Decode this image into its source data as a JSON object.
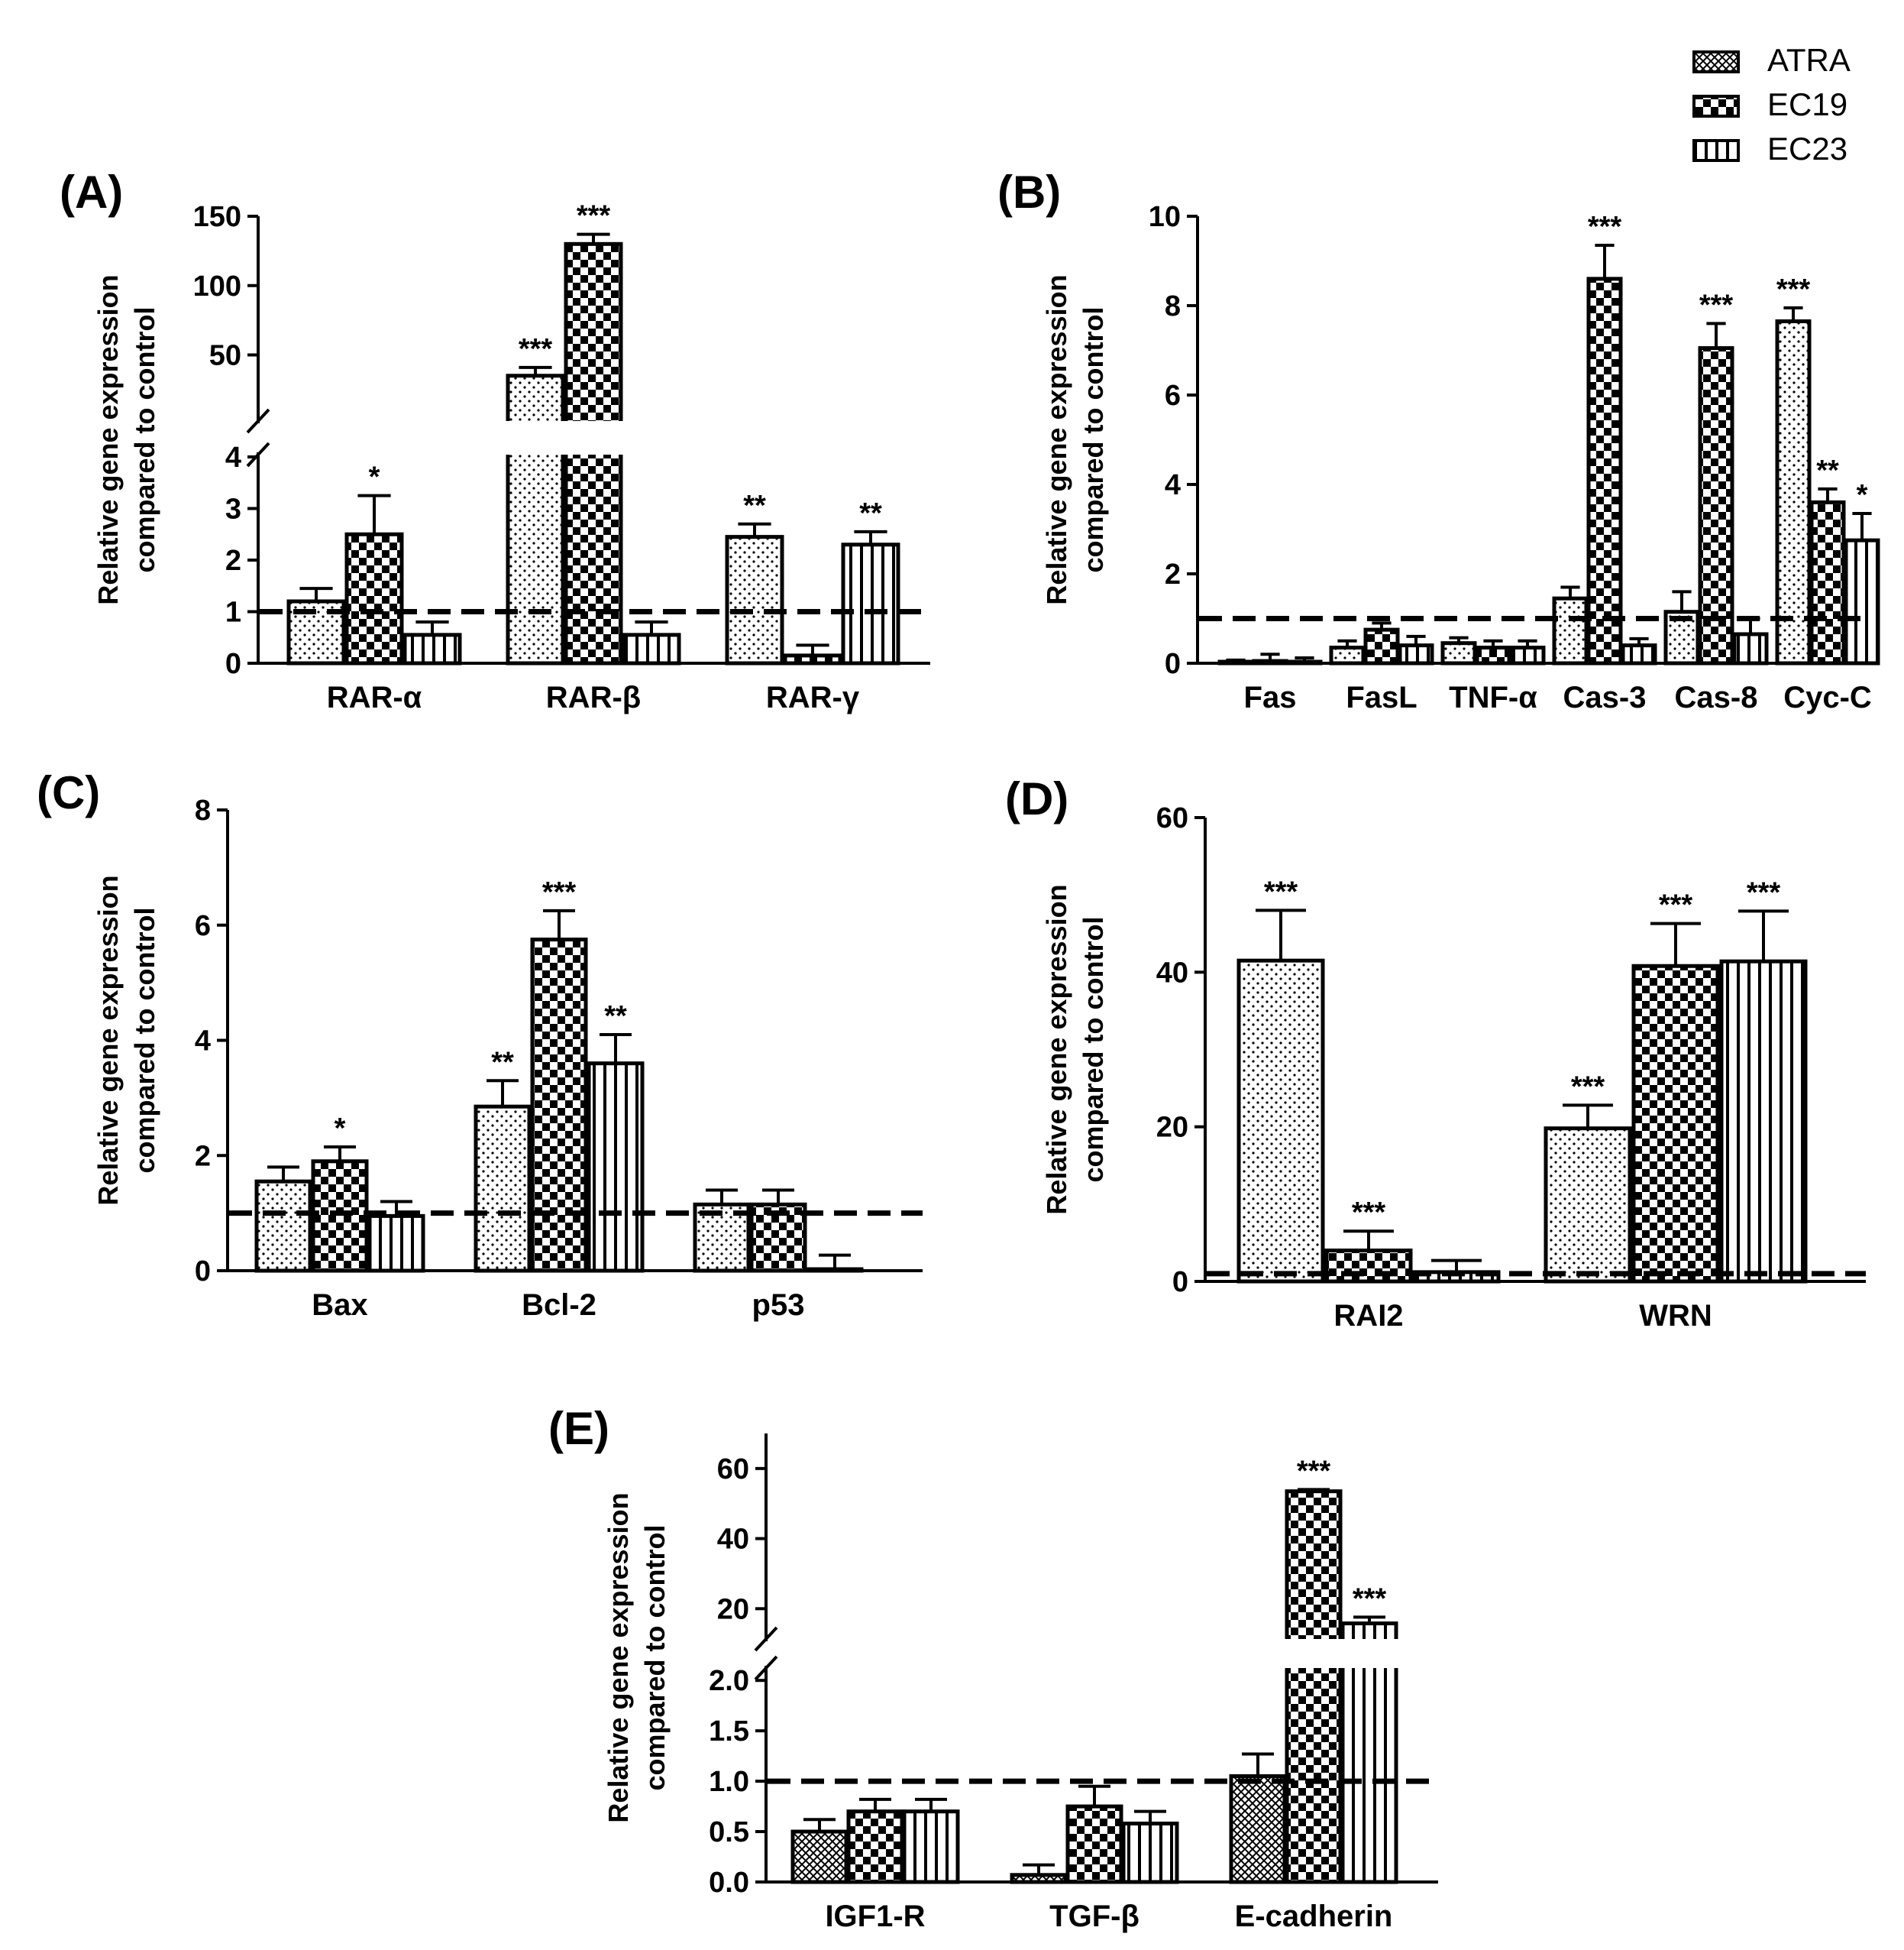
{
  "legend": {
    "entries": [
      {
        "name": "ATRA",
        "pattern": "dots"
      },
      {
        "name": "EC19",
        "pattern": "checker"
      },
      {
        "name": "EC23",
        "pattern": "vlines"
      }
    ]
  },
  "colors": {
    "ink": "#000000",
    "background": "#ffffff"
  },
  "chart_data": [
    {
      "panel": "(A)",
      "type": "bar",
      "ylabel": [
        "Relative gene expression",
        "compared to control"
      ],
      "categories": [
        "RAR-α",
        "RAR-β",
        "RAR-γ"
      ],
      "series": [
        {
          "name": "ATRA",
          "values": [
            1.2,
            35,
            2.45
          ],
          "errors": [
            0.25,
            6,
            0.25
          ],
          "stars": [
            "",
            "***",
            "**"
          ]
        },
        {
          "name": "EC19",
          "values": [
            2.5,
            130,
            0.15
          ],
          "errors": [
            0.75,
            7,
            0.2
          ],
          "stars": [
            "*",
            "***",
            ""
          ]
        },
        {
          "name": "EC23",
          "values": [
            0.55,
            0.55,
            2.3
          ],
          "errors": [
            0.25,
            0.25,
            0.25
          ],
          "stars": [
            "",
            "",
            "**"
          ]
        }
      ],
      "axis_break": {
        "lower": [
          0,
          4
        ],
        "upper": [
          4,
          150
        ]
      },
      "yticks_lower": [
        0,
        1,
        2,
        3,
        4
      ],
      "yticks_lower_labels": [
        "0",
        "1",
        "2",
        "3",
        "4"
      ],
      "yticks_upper": [
        50,
        100,
        150
      ],
      "yticks_upper_labels": [
        "50",
        "100",
        "150"
      ],
      "control_line": 1
    },
    {
      "panel": "(B)",
      "type": "bar",
      "ylabel": [
        "Relative gene expression",
        "compared to control"
      ],
      "categories": [
        "Fas",
        "FasL",
        "TNF-α",
        "Cas-3",
        "Cas-8",
        "Cyc-C"
      ],
      "series": [
        {
          "name": "ATRA",
          "values": [
            0.02,
            0.35,
            0.45,
            1.45,
            1.15,
            7.65
          ],
          "errors": [
            0.05,
            0.15,
            0.12,
            0.25,
            0.45,
            0.3
          ],
          "stars": [
            "",
            "",
            "",
            "",
            "",
            "***"
          ]
        },
        {
          "name": "EC19",
          "values": [
            0.05,
            0.75,
            0.35,
            8.6,
            7.05,
            3.6
          ],
          "errors": [
            0.15,
            0.15,
            0.15,
            0.75,
            0.55,
            0.3
          ],
          "stars": [
            "",
            "",
            "",
            "***",
            "***",
            "**"
          ]
        },
        {
          "name": "EC23",
          "values": [
            0.02,
            0.4,
            0.35,
            0.4,
            0.65,
            2.75
          ],
          "errors": [
            0.1,
            0.2,
            0.15,
            0.15,
            0.35,
            0.6
          ],
          "stars": [
            "",
            "",
            "",
            "",
            "",
            "*"
          ]
        }
      ],
      "ylim": [
        0,
        10
      ],
      "yticks": [
        0,
        2,
        4,
        6,
        8,
        10
      ],
      "ytick_labels": [
        "0",
        "2",
        "4",
        "6",
        "8",
        "10"
      ],
      "control_line": 1
    },
    {
      "panel": "(C)",
      "type": "bar",
      "ylabel": [
        "Relative gene expression",
        "compared to control"
      ],
      "categories": [
        "Bax",
        "Bcl-2",
        "p53"
      ],
      "series": [
        {
          "name": "ATRA",
          "values": [
            1.55,
            2.85,
            1.15
          ],
          "errors": [
            0.25,
            0.45,
            0.25
          ],
          "stars": [
            "",
            "**",
            ""
          ]
        },
        {
          "name": "EC19",
          "values": [
            1.9,
            5.75,
            1.15
          ],
          "errors": [
            0.25,
            0.5,
            0.25
          ],
          "stars": [
            "*",
            "***",
            ""
          ]
        },
        {
          "name": "EC23",
          "values": [
            0.95,
            3.6,
            0.02
          ],
          "errors": [
            0.25,
            0.5,
            0.25
          ],
          "stars": [
            "",
            "**",
            ""
          ]
        }
      ],
      "ylim": [
        0,
        8
      ],
      "yticks": [
        0,
        2,
        4,
        6,
        8
      ],
      "ytick_labels": [
        "0",
        "2",
        "4",
        "6",
        "8"
      ],
      "control_line": 1
    },
    {
      "panel": "(D)",
      "type": "bar",
      "ylabel": [
        "Relative gene expression",
        "compared to control"
      ],
      "categories": [
        "RAI2",
        "WRN"
      ],
      "series": [
        {
          "name": "ATRA",
          "values": [
            41.5,
            19.8
          ],
          "errors": [
            6.5,
            3
          ],
          "stars": [
            "***",
            "***"
          ]
        },
        {
          "name": "EC19",
          "values": [
            4,
            40.8
          ],
          "errors": [
            2.5,
            5.5
          ],
          "stars": [
            "***",
            "***"
          ]
        },
        {
          "name": "EC23",
          "values": [
            1.2,
            41.4
          ],
          "errors": [
            1.5,
            6.5
          ],
          "stars": [
            "",
            "***"
          ]
        }
      ],
      "ylim": [
        0,
        60
      ],
      "yticks": [
        0,
        20,
        40,
        60
      ],
      "ytick_labels": [
        "0",
        "20",
        "40",
        "60"
      ],
      "control_line": 1
    },
    {
      "panel": "(E)",
      "type": "bar",
      "ylabel": [
        "Relative gene expression",
        "compared to control"
      ],
      "categories": [
        "IGF1-R",
        "TGF-β",
        "E-cadherin"
      ],
      "series": [
        {
          "name": "ATRA",
          "values": [
            0.5,
            0.07,
            1.05
          ],
          "errors": [
            0.12,
            0.1,
            0.22
          ],
          "stars": [
            "",
            "",
            ""
          ]
        },
        {
          "name": "EC19",
          "values": [
            0.7,
            0.75,
            53.5
          ],
          "errors": [
            0.12,
            0.2,
            0.5
          ],
          "stars": [
            "",
            "",
            "***"
          ]
        },
        {
          "name": "EC23",
          "values": [
            0.7,
            0.58,
            15.8
          ],
          "errors": [
            0.12,
            0.12,
            1.8
          ],
          "stars": [
            "",
            "",
            "***"
          ]
        }
      ],
      "axis_break": {
        "lower": [
          0,
          2.1
        ],
        "upper": [
          12,
          70
        ]
      },
      "yticks_lower": [
        0,
        0.5,
        1,
        1.5,
        2
      ],
      "yticks_lower_labels": [
        "0.0",
        "0.5",
        "1.0",
        "1.5",
        "2.0"
      ],
      "yticks_upper": [
        20,
        40,
        60
      ],
      "yticks_upper_labels": [
        "20",
        "40",
        "60"
      ],
      "control_line": 1
    }
  ]
}
